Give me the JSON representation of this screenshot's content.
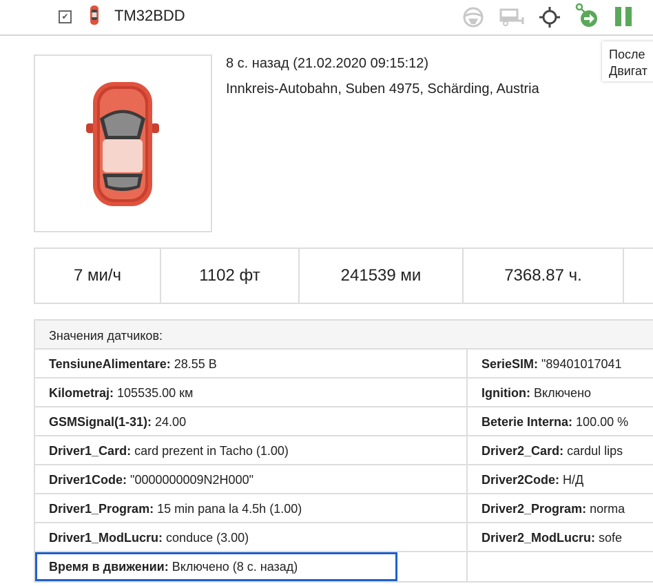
{
  "header": {
    "checked": true,
    "plate": "TM32BDD",
    "icons": [
      "steering-wheel-icon",
      "trailer-icon",
      "locate-icon",
      "route-go-icon",
      "pause-icon"
    ]
  },
  "tooltip": {
    "line1": "После",
    "line2": "Двигат"
  },
  "info": {
    "time": "8 с. назад (21.02.2020 09:15:12)",
    "address": "Innkreis-Autobahn, Suben 4975, Schärding, Austria"
  },
  "stats": [
    "7 ми/ч",
    "1102 фт",
    "241539 ми",
    "7368.87 ч.",
    ""
  ],
  "sensors": {
    "title": "Значения датчиков:",
    "rows": [
      {
        "lk": "TensiuneAlimentare:",
        "lv": " 28.55 В",
        "rk": "SerieSIM:",
        "rv": " \"89401017041"
      },
      {
        "lk": "Kilometraj:",
        "lv": " 105535.00 км",
        "rk": "Ignition:",
        "rv": " Включено"
      },
      {
        "lk": "GSMSignal(1-31):",
        "lv": " 24.00",
        "rk": "Beterie Interna:",
        "rv": " 100.00 %"
      },
      {
        "lk": "Driver1_Card:",
        "lv": " card prezent in Tacho (1.00)",
        "rk": "Driver2_Card:",
        "rv": " cardul lips"
      },
      {
        "lk": "Driver1Code:",
        "lv": " \"0000000009N2H000\"",
        "rk": "Driver2Code:",
        "rv": " Н/Д"
      },
      {
        "lk": "Driver1_Program:",
        "lv": " 15 min pana la 4.5h (1.00)",
        "rk": "Driver2_Program:",
        "rv": " norma"
      },
      {
        "lk": "Driver1_ModLucru:",
        "lv": " conduce (3.00)",
        "rk": "Driver2_ModLucru:",
        "rv": " sofe"
      },
      {
        "lk": "Время в движении:",
        "lv": " Включено (8 с. назад)",
        "rk": "",
        "rv": ""
      }
    ]
  },
  "colors": {
    "green": "#5aa85a",
    "selection": "#1f5fcf",
    "car": "#e0523e"
  }
}
